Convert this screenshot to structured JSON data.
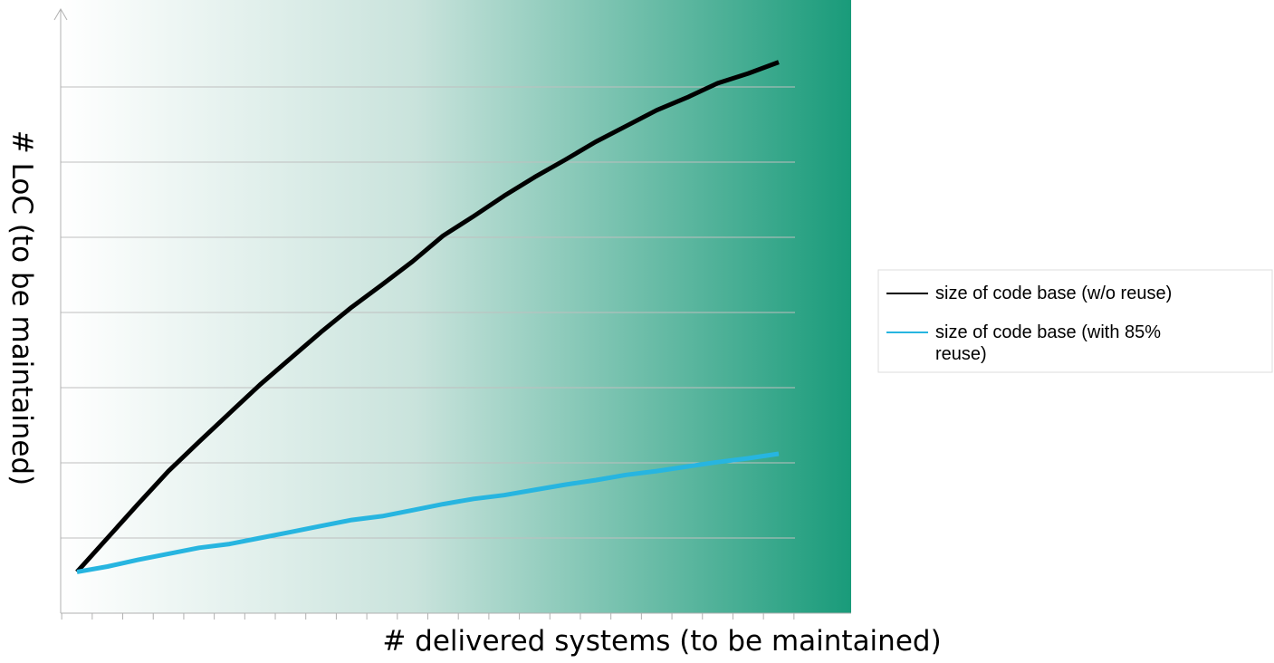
{
  "chart_data": {
    "type": "line",
    "title": "",
    "xlabel": "# delivered systems (to be maintained)",
    "ylabel": "# LoC (to be maintained)",
    "x": [
      1,
      2,
      3,
      4,
      5,
      6,
      7,
      8,
      9,
      10,
      11,
      12,
      13,
      14,
      15,
      16,
      17,
      18,
      19,
      20,
      21,
      22,
      23,
      24
    ],
    "xlim": [
      0.5,
      24.5
    ],
    "ylim": [
      0,
      7
    ],
    "grid": true,
    "legend_position": "right",
    "background_gradient": [
      "#ffffff",
      "#199b7a"
    ],
    "series": [
      {
        "name": "size of code base (w/o reuse)",
        "color": "#000000",
        "values": [
          0.55,
          1.0,
          1.45,
          1.89,
          2.28,
          2.66,
          3.04,
          3.39,
          3.74,
          4.07,
          4.37,
          4.68,
          5.02,
          5.28,
          5.55,
          5.8,
          6.03,
          6.27,
          6.48,
          6.69,
          6.86,
          7.05,
          7.18,
          7.33
        ]
      },
      {
        "name": "size of code base (with 85% reuse)",
        "color": "#27b5e0",
        "values": [
          0.55,
          0.62,
          0.71,
          0.79,
          0.87,
          0.92,
          1.0,
          1.08,
          1.16,
          1.24,
          1.29,
          1.37,
          1.45,
          1.52,
          1.57,
          1.64,
          1.71,
          1.77,
          1.84,
          1.89,
          1.95,
          2.01,
          2.06,
          2.12
        ]
      }
    ]
  }
}
